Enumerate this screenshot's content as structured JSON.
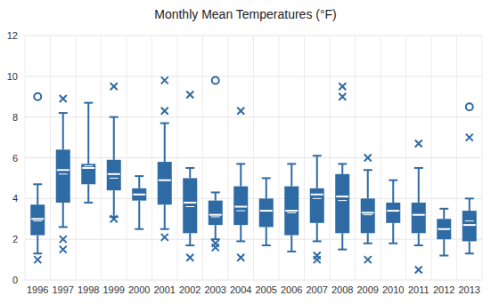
{
  "chart_data": {
    "type": "box",
    "title": "Monthly Mean Temperatures (°F)",
    "categories": [
      "1996",
      "1997",
      "1998",
      "1999",
      "2000",
      "2001",
      "2002",
      "2003",
      "2004",
      "2005",
      "2006",
      "2007",
      "2008",
      "2009",
      "2010",
      "2011",
      "2012",
      "2013"
    ],
    "color": "#2e6aa3",
    "ylim": [
      0,
      12
    ],
    "yticks": [
      0,
      2,
      4,
      6,
      8,
      10,
      12
    ],
    "grid": true,
    "boxes": [
      {
        "min": 1.3,
        "q1": 2.2,
        "median": 3.0,
        "q3": 3.7,
        "max": 4.7,
        "mean": 2.9,
        "outliers": [
          1.0
        ],
        "extremes": [
          9.0
        ]
      },
      {
        "min": 2.6,
        "q1": 3.8,
        "median": 5.4,
        "q3": 6.4,
        "max": 8.2,
        "mean": 5.2,
        "outliers": [
          2.0,
          1.5,
          8.9
        ],
        "extremes": []
      },
      {
        "min": 3.8,
        "q1": 4.7,
        "median": 5.5,
        "q3": 5.7,
        "max": 8.7,
        "mean": 5.6,
        "outliers": [],
        "extremes": []
      },
      {
        "min": 3.1,
        "q1": 4.4,
        "median": 5.2,
        "q3": 5.9,
        "max": 8.0,
        "mean": 5.0,
        "outliers": [
          9.5,
          3.0
        ],
        "extremes": []
      },
      {
        "min": 2.5,
        "q1": 3.9,
        "median": 4.2,
        "q3": 4.5,
        "max": 5.1,
        "mean": 4.2,
        "outliers": [],
        "extremes": []
      },
      {
        "min": 2.5,
        "q1": 3.7,
        "median": 4.9,
        "q3": 5.8,
        "max": 7.7,
        "mean": 4.9,
        "outliers": [
          9.8,
          8.3,
          2.1
        ],
        "extremes": []
      },
      {
        "min": 1.7,
        "q1": 2.3,
        "median": 3.8,
        "q3": 5.0,
        "max": 5.5,
        "mean": 3.6,
        "outliers": [
          9.1,
          1.1
        ],
        "extremes": []
      },
      {
        "min": 2.0,
        "q1": 2.7,
        "median": 3.2,
        "q3": 3.9,
        "max": 4.3,
        "mean": 3.1,
        "outliers": [
          1.8,
          1.6
        ],
        "extremes": [
          9.8
        ]
      },
      {
        "min": 1.9,
        "q1": 2.7,
        "median": 3.6,
        "q3": 4.6,
        "max": 5.7,
        "mean": 3.4,
        "outliers": [
          8.3,
          1.1
        ],
        "extremes": []
      },
      {
        "min": 1.7,
        "q1": 2.6,
        "median": 3.4,
        "q3": 4.0,
        "max": 5.0,
        "mean": 3.4,
        "outliers": [],
        "extremes": []
      },
      {
        "min": 1.4,
        "q1": 2.2,
        "median": 3.4,
        "q3": 4.6,
        "max": 5.7,
        "mean": 3.3,
        "outliers": [],
        "extremes": []
      },
      {
        "min": 1.9,
        "q1": 2.8,
        "median": 4.2,
        "q3": 4.5,
        "max": 6.1,
        "mean": 4.0,
        "outliers": [
          1.2,
          1.0
        ],
        "extremes": []
      },
      {
        "min": 1.5,
        "q1": 2.3,
        "median": 4.1,
        "q3": 5.2,
        "max": 5.7,
        "mean": 3.9,
        "outliers": [
          9.5,
          9.0
        ],
        "extremes": []
      },
      {
        "min": 1.8,
        "q1": 2.3,
        "median": 3.3,
        "q3": 4.0,
        "max": 5.4,
        "mean": 3.2,
        "outliers": [
          6.0,
          1.0
        ],
        "extremes": []
      },
      {
        "min": 1.8,
        "q1": 2.8,
        "median": 3.4,
        "q3": 3.8,
        "max": 4.9,
        "mean": 3.4,
        "outliers": [],
        "extremes": []
      },
      {
        "min": 1.7,
        "q1": 2.3,
        "median": 3.2,
        "q3": 3.8,
        "max": 5.5,
        "mean": 3.2,
        "outliers": [
          6.7,
          0.5
        ],
        "extremes": []
      },
      {
        "min": 1.2,
        "q1": 2.0,
        "median": 2.5,
        "q3": 3.0,
        "max": 3.5,
        "mean": 2.5,
        "outliers": [],
        "extremes": []
      },
      {
        "min": 1.3,
        "q1": 1.9,
        "median": 2.7,
        "q3": 3.4,
        "max": 4.0,
        "mean": 2.9,
        "outliers": [
          7.0
        ],
        "extremes": [
          8.5
        ]
      }
    ]
  }
}
